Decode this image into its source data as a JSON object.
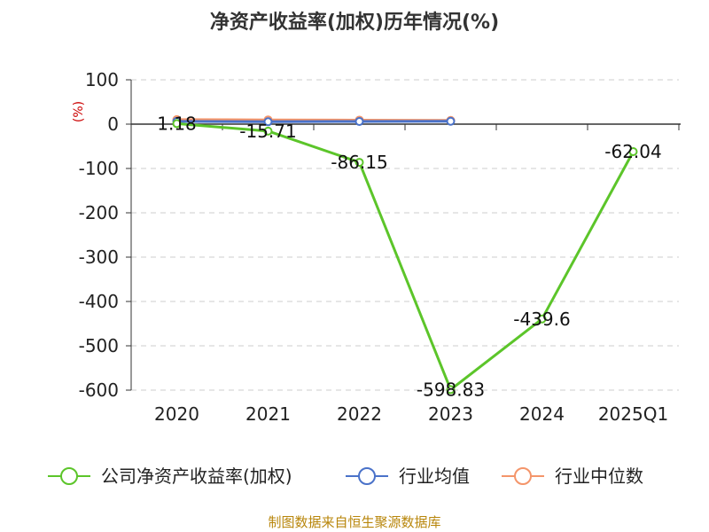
{
  "chart_data": {
    "type": "line",
    "title": "净资产收益率(加权)历年情况(%)",
    "ylabel": "(%)",
    "categories": [
      "2020",
      "2021",
      "2022",
      "2023",
      "2024",
      "2025Q1"
    ],
    "ylim": [
      -600,
      100
    ],
    "yticks": [
      100,
      0,
      -100,
      -200,
      -300,
      -400,
      -500,
      -600
    ],
    "grid": true,
    "legend_position": "bottom",
    "series": [
      {
        "name": "公司净资产收益率(加权)",
        "color": "#5cc52a",
        "values": [
          1.18,
          -15.71,
          -86.15,
          -598.83,
          -439.6,
          -62.04
        ],
        "labels": [
          "1.18",
          "-15.71",
          "-86.15",
          "-598.83",
          "-439.6",
          "-62.04"
        ]
      },
      {
        "name": "行业均值",
        "color": "#4a72c9",
        "values": [
          6.2,
          5.4,
          6.1,
          6.5,
          null,
          null
        ]
      },
      {
        "name": "行业中位数",
        "color": "#f4956a",
        "values": [
          10.3,
          9.6,
          9.1,
          8.4,
          null,
          null
        ]
      }
    ]
  },
  "source": "制图数据来自恒生聚源数据库"
}
